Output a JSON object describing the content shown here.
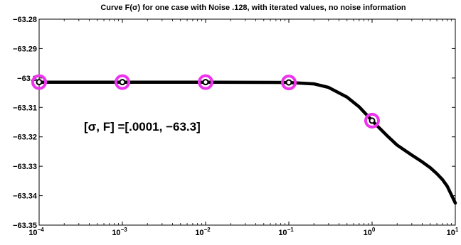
{
  "chart_data": {
    "type": "line",
    "title": "Curve F(σ) for one case with Noise .128, with iterated values, no noise information",
    "xlabel": "",
    "ylabel": "",
    "x_scale": "log",
    "xlim": [
      0.0001,
      10
    ],
    "ylim": [
      -63.35,
      -63.28
    ],
    "grid": false,
    "x_ticks": [
      {
        "base": "10",
        "exp": "−4"
      },
      {
        "base": "10",
        "exp": "−3"
      },
      {
        "base": "10",
        "exp": "−2"
      },
      {
        "base": "10",
        "exp": "−1"
      },
      {
        "base": "10",
        "exp": "0"
      },
      {
        "base": "10",
        "exp": "1"
      }
    ],
    "y_ticks": [
      "−63.28",
      "−63.29",
      "−63.3",
      "−63.31",
      "−63.32",
      "−63.33",
      "−63.34",
      "−63.35"
    ],
    "series": [
      {
        "color": "#000000",
        "x": [
          0.0001,
          0.001,
          0.01,
          0.1,
          0.2,
          0.3,
          0.5,
          0.7,
          1,
          1.5,
          2,
          3,
          4,
          5,
          6,
          7,
          8,
          9,
          10
        ],
        "y": [
          -63.3014,
          -63.3014,
          -63.3014,
          -63.3015,
          -63.302,
          -63.3032,
          -63.3065,
          -63.3098,
          -63.3145,
          -63.3195,
          -63.3228,
          -63.3262,
          -63.3285,
          -63.3305,
          -63.3325,
          -63.3345,
          -63.3368,
          -63.3398,
          -63.3425
        ]
      }
    ],
    "markers": {
      "color": "#ee33ee",
      "x": [
        0.0001,
        0.001,
        0.01,
        0.1,
        1
      ],
      "y": [
        -63.3014,
        -63.3014,
        -63.3014,
        -63.3015,
        -63.3145
      ]
    },
    "annotation": "[σ, F] =[.0001, −63.3]"
  }
}
